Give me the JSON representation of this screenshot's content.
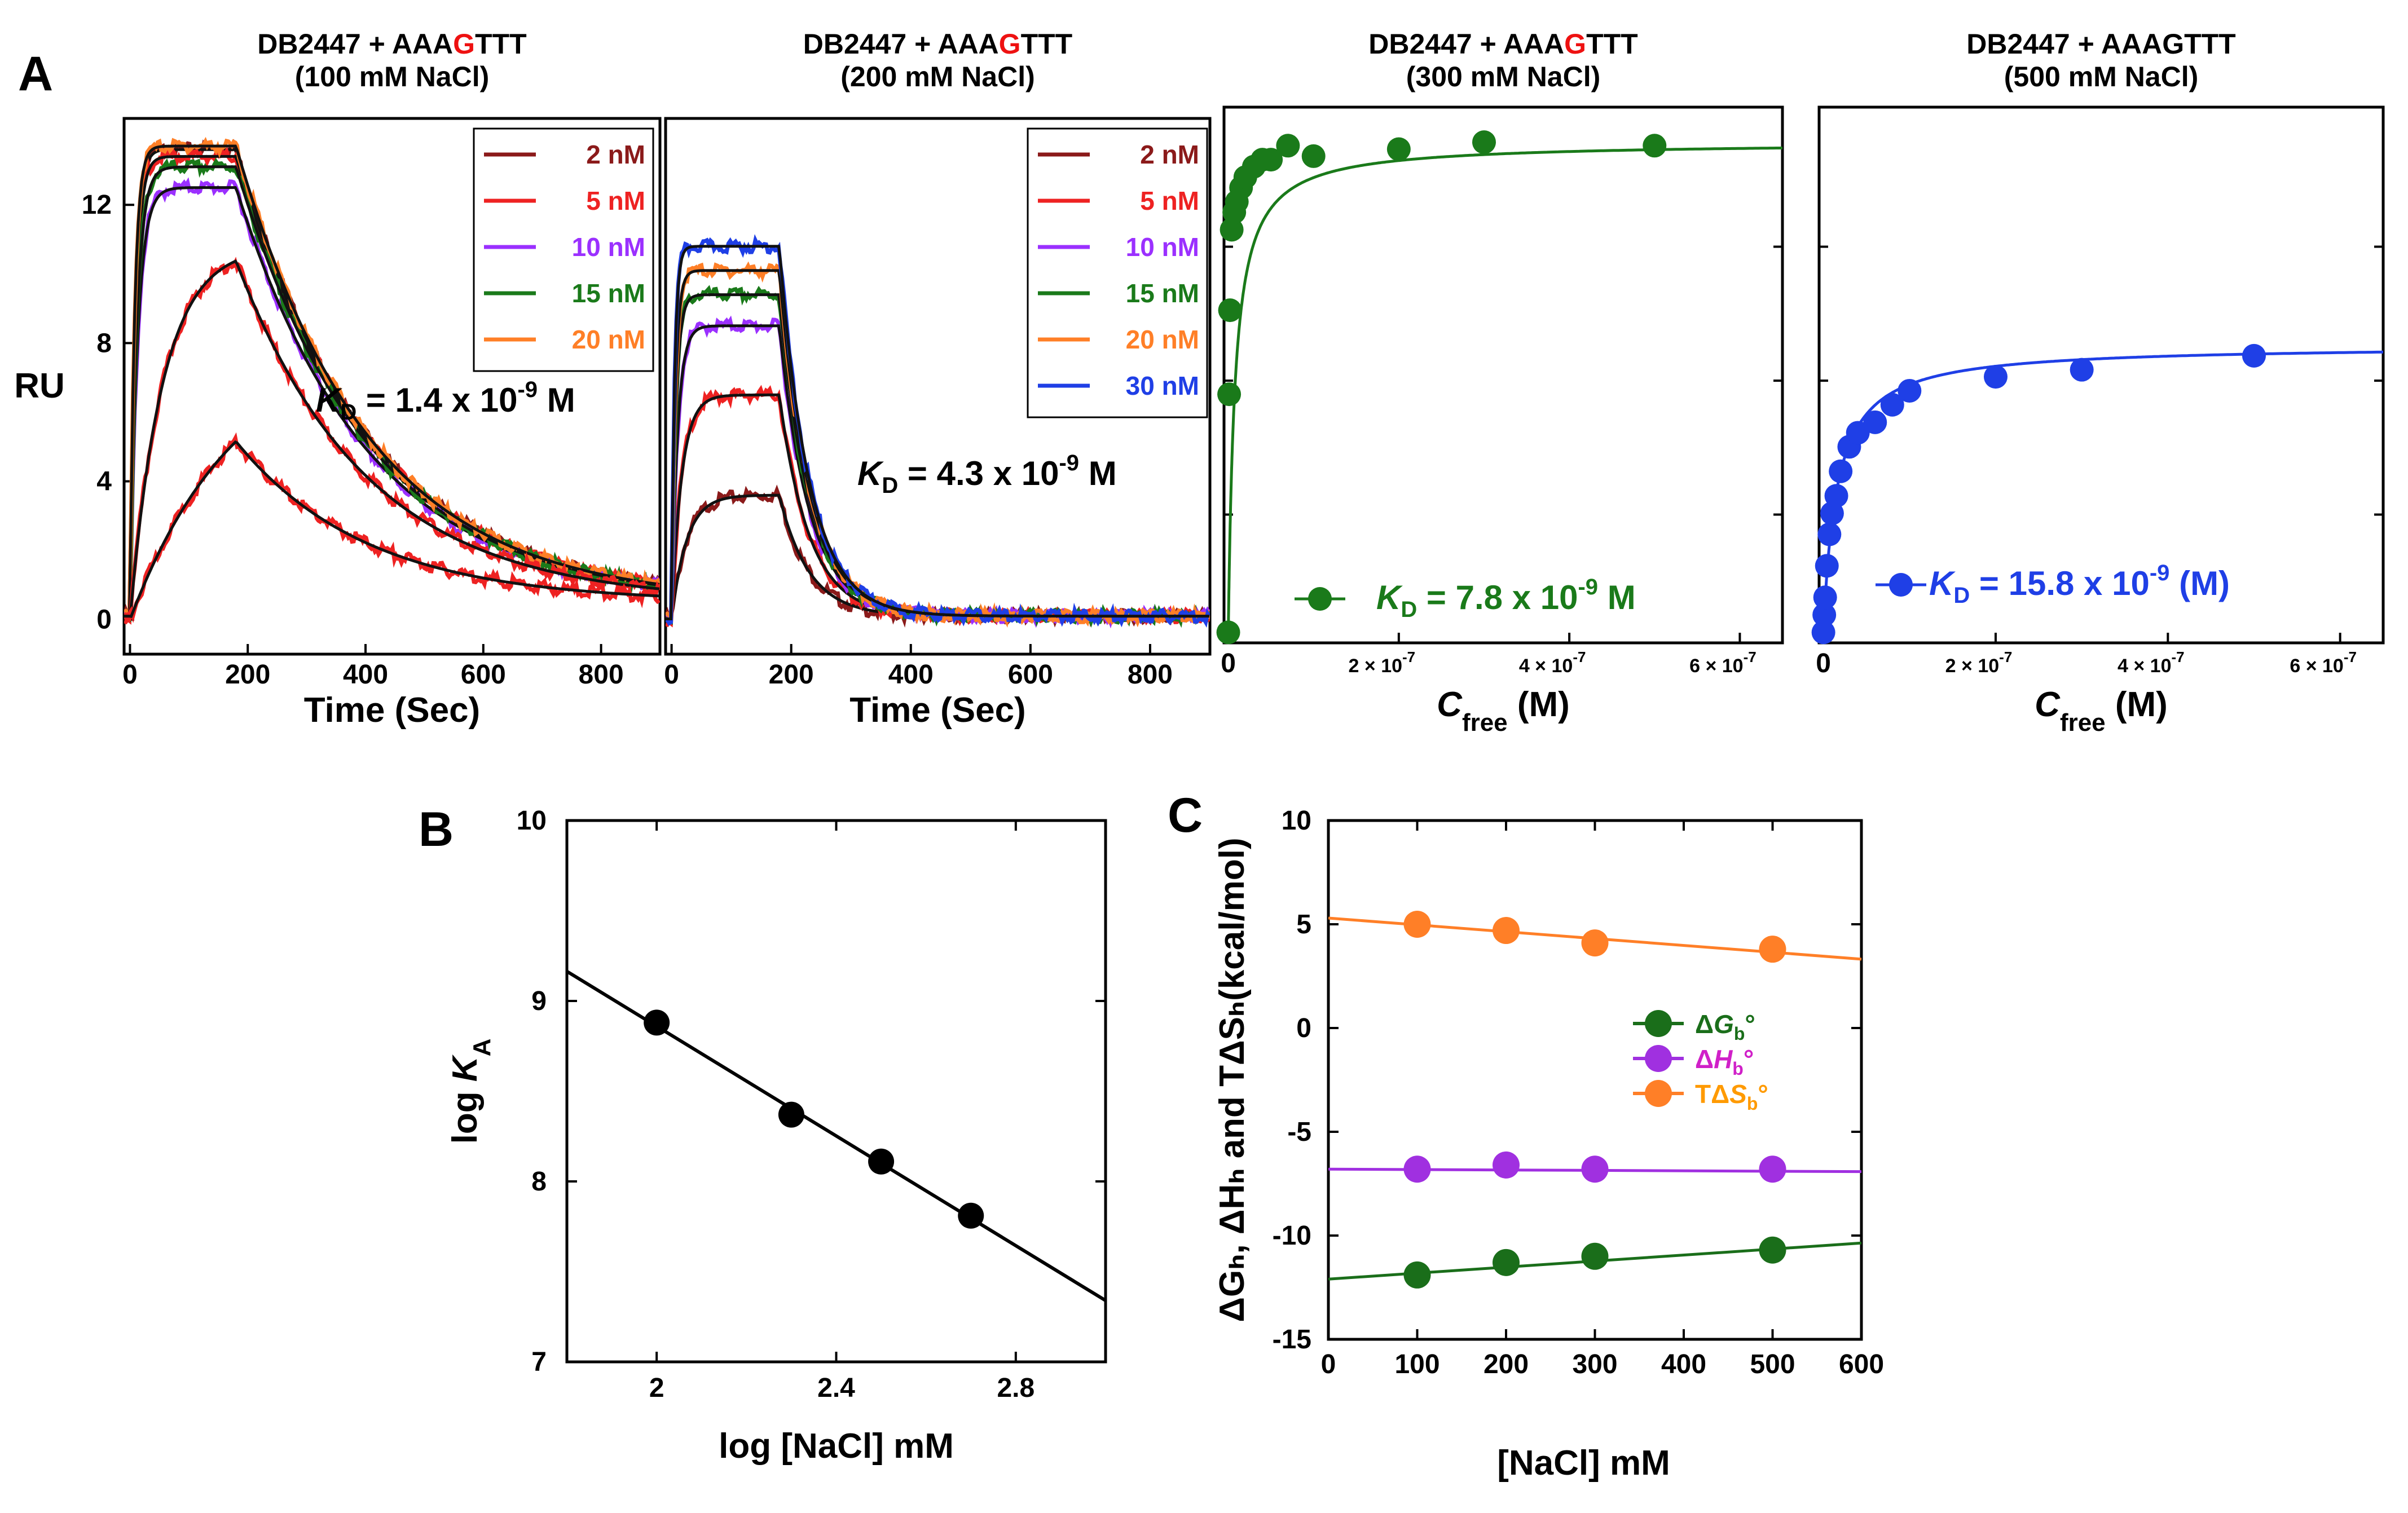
{
  "panel_labels": {
    "A": "A",
    "B": "B",
    "C": "C"
  },
  "colors": {
    "dark_red": "#8b1a1a",
    "red": "#ee2222",
    "purple": "#9b30ff",
    "green": "#1a7a1a",
    "orange": "#ff7f27",
    "blue": "#1f3fe6",
    "fit": "#111111",
    "dark_green": "#1a6e1a",
    "magenta": "#c020c0",
    "orange_text": "#ff9a00"
  },
  "chart_data": [
    {
      "id": "A1",
      "type": "line",
      "title": {
        "prefix": "DB2447 + AAA",
        "highlight": "G",
        "suffix": "TTT",
        "line2": "(100 mM NaCl)"
      },
      "xlabel": "Time (Sec)",
      "ylabel": "RU",
      "xlim": [
        -10,
        900
      ],
      "ylim": [
        -1,
        14.5
      ],
      "xticks": [
        0,
        200,
        400,
        600,
        800
      ],
      "yticks": [
        0,
        4,
        8,
        12
      ],
      "kd": {
        "prefix": "K",
        "sub": "D",
        "mid": " = 1.4 x 10",
        "sup": "-9",
        "suffix": " M"
      },
      "injection_end": 180,
      "series": [
        {
          "name": "2 nM",
          "color": "#8b1a1a",
          "plateau": 13.6,
          "peak": 13.6,
          "k_on": 0.12,
          "k_off": 0.0045,
          "baseline": 0.5
        },
        {
          "name": "5 nM",
          "color": "#ee2222",
          "plateau": 13.4,
          "peak": 13.4,
          "k_on": 0.11,
          "k_off": 0.0045,
          "baseline": 0.5
        },
        {
          "name": "10 nM",
          "color": "#9b30ff",
          "plateau": 12.5,
          "peak": 12.5,
          "k_on": 0.08,
          "k_off": 0.0045,
          "baseline": 0.5
        },
        {
          "name": "15 nM",
          "color": "#1a7a1a",
          "plateau": 13.1,
          "peak": 13.1,
          "k_on": 0.09,
          "k_off": 0.0045,
          "baseline": 0.5
        },
        {
          "name": "20 nM",
          "color": "#ff7f27",
          "plateau": 13.7,
          "peak": 13.7,
          "k_on": 0.13,
          "k_off": 0.0045,
          "baseline": 0.5
        }
      ],
      "extra_curves": [
        {
          "color": "#ee2222",
          "plateau": 10.8,
          "k_on": 0.018,
          "k_off": 0.0045,
          "baseline": 0.5
        },
        {
          "color": "#ee2222",
          "plateau": 8.2,
          "k_on": 0.0055,
          "k_off": 0.0045,
          "baseline": 0.5
        }
      ]
    },
    {
      "id": "A2",
      "type": "line",
      "title": {
        "prefix": "DB2447 + AAA",
        "highlight": "G",
        "suffix": "TTT",
        "line2": "(200 mM NaCl)"
      },
      "xlabel": "Time (Sec)",
      "ylabel": "",
      "xlim": [
        -10,
        900
      ],
      "ylim": [
        -1,
        14.5
      ],
      "xticks": [
        0,
        200,
        400,
        600,
        800
      ],
      "yticks": [],
      "kd": {
        "prefix": "K",
        "sub": "D",
        "mid": " = 4.3 x 10",
        "sup": "-9",
        "suffix": " M"
      },
      "injection_end": 180,
      "series": [
        {
          "name": "2 nM",
          "color": "#8b1a1a",
          "plateau": 3.6,
          "k_on": 0.04,
          "k_off": 0.02,
          "baseline": 0.1
        },
        {
          "name": "5 nM",
          "color": "#ee2222",
          "plateau": 6.5,
          "k_on": 0.06,
          "k_off": 0.02,
          "baseline": 0.1
        },
        {
          "name": "10 nM",
          "color": "#9b30ff",
          "plateau": 8.5,
          "k_on": 0.1,
          "k_off": 0.02,
          "baseline": 0.1
        },
        {
          "name": "15 nM",
          "color": "#1a7a1a",
          "plateau": 9.4,
          "k_on": 0.14,
          "k_off": 0.02,
          "baseline": 0.1
        },
        {
          "name": "20 nM",
          "color": "#ff7f27",
          "plateau": 10.1,
          "k_on": 0.16,
          "k_off": 0.02,
          "baseline": 0.1
        },
        {
          "name": "30 nM",
          "color": "#1f3fe6",
          "plateau": 10.8,
          "k_on": 0.2,
          "k_off": 0.02,
          "baseline": 0.1
        }
      ]
    },
    {
      "id": "A3",
      "type": "scatter",
      "title": {
        "prefix": "DB2447 + AAA",
        "highlight": "G",
        "suffix": "TTT",
        "line2": "(300 mM NaCl)"
      },
      "xlabel": "C",
      "xlabel_sub": "free",
      "xlabel_suffix": " (M)",
      "xlim": [
        -5e-09,
        6.5e-07
      ],
      "ylim": [
        -0.3,
        15
      ],
      "xticks": [
        {
          "value": 0,
          "label": "0",
          "exp": ""
        },
        {
          "value": 2e-07,
          "label": "2 × 10",
          "exp": "-7"
        },
        {
          "value": 4e-07,
          "label": "4 × 10",
          "exp": "-7"
        },
        {
          "value": 6e-07,
          "label": "6 × 10",
          "exp": "-7"
        }
      ],
      "color": "#1a7a1a",
      "rmax": 14,
      "kd_value": 7.8e-09,
      "x": [
        0,
        1e-09,
        2e-09,
        4e-09,
        7e-09,
        1e-08,
        1.5e-08,
        2e-08,
        3e-08,
        4e-08,
        5e-08,
        7e-08,
        1e-07,
        2e-07,
        3e-07,
        5e-07
      ],
      "y": [
        0,
        6.8,
        9.2,
        11.5,
        12.0,
        12.3,
        12.7,
        13.0,
        13.3,
        13.5,
        13.5,
        13.9,
        13.6,
        13.8,
        14.0,
        13.9
      ],
      "kd": {
        "prefix": "K",
        "sub": "D",
        "mid": " = 7.8 x 10",
        "sup": "-9",
        "suffix": " M"
      }
    },
    {
      "id": "A4",
      "type": "scatter",
      "title": {
        "prefix": "DB2447 + AAA",
        "highlight": "",
        "suffix": "GTTT",
        "line2": "(500 mM NaCl)"
      },
      "xlabel": "C",
      "xlabel_sub": "free",
      "xlabel_suffix": " (M)",
      "xlim": [
        -5e-09,
        6.5e-07
      ],
      "ylim": [
        -0.3,
        15
      ],
      "xticks": [
        {
          "value": 0,
          "label": "0",
          "exp": ""
        },
        {
          "value": 2e-07,
          "label": "2 × 10",
          "exp": "-7"
        },
        {
          "value": 4e-07,
          "label": "4 × 10",
          "exp": "-7"
        },
        {
          "value": 6e-07,
          "label": "6 × 10",
          "exp": "-7"
        }
      ],
      "color": "#1f3fe6",
      "rmax": 8.2,
      "kd_value": 1.58e-08,
      "x": [
        0,
        1e-09,
        2e-09,
        4e-09,
        7e-09,
        1e-08,
        1.5e-08,
        2e-08,
        3e-08,
        4e-08,
        6e-08,
        8e-08,
        1e-07,
        2e-07,
        3e-07,
        5e-07
      ],
      "y": [
        0,
        0.5,
        1.0,
        1.9,
        2.8,
        3.4,
        3.9,
        4.6,
        5.3,
        5.7,
        6.0,
        6.5,
        6.9,
        7.3,
        7.5,
        7.9
      ],
      "kd": {
        "prefix": "K",
        "sub": "D",
        "mid": " = 15.8 x 10",
        "sup": "-9",
        "suffix": " (M)"
      }
    },
    {
      "id": "B",
      "type": "scatter",
      "xlabel": "log [NaCl] mM",
      "ylabel": "log K",
      "ylabel_sub": "A",
      "xlim": [
        1.8,
        3.0
      ],
      "ylim": [
        7,
        10
      ],
      "xticks": [
        2,
        2.4,
        2.8
      ],
      "xtick_labels": [
        "2",
        "2.4",
        "2.8"
      ],
      "yticks": [
        7,
        8,
        9,
        10
      ],
      "x": [
        2.0,
        2.3,
        2.5,
        2.7
      ],
      "y": [
        8.88,
        8.37,
        8.11,
        7.81
      ],
      "fit": {
        "slope": -1.52,
        "intercept": 11.9
      }
    },
    {
      "id": "C",
      "type": "scatter",
      "xlabel": "[NaCl] mM",
      "ylabel": "ΔGₕ, ΔHₕ and TΔSₕ(kcal/mol)",
      "xlim": [
        0,
        600
      ],
      "ylim": [
        -15,
        10
      ],
      "xticks": [
        0,
        100,
        200,
        300,
        400,
        500,
        600
      ],
      "yticks": [
        -15,
        -10,
        -5,
        0,
        5,
        10
      ],
      "x": [
        100,
        200,
        300,
        500
      ],
      "series": [
        {
          "name": "ΔG",
          "italic": "G",
          "sub": "b",
          "sym": "°",
          "color": "#1a6e1a",
          "text_color": "#1a6e1a",
          "values": [
            -11.9,
            -11.3,
            -11.0,
            -10.7
          ],
          "fit": [
            -12.1,
            0.0029
          ]
        },
        {
          "name": "ΔH",
          "italic": "H",
          "sub": "b",
          "sym": "°",
          "color": "#a030e0",
          "text_color": "#d020c8",
          "values": [
            -6.8,
            -6.6,
            -6.8,
            -6.8
          ],
          "fit": [
            -6.8,
            -0.0002
          ]
        },
        {
          "name": "TΔS",
          "italic": "S",
          "sub": "b",
          "sym": "°",
          "color": "#ff7f27",
          "text_color": "#ff9a00",
          "values": [
            5.0,
            4.7,
            4.1,
            3.8
          ],
          "fit": [
            5.3,
            -0.0033
          ]
        }
      ]
    }
  ]
}
